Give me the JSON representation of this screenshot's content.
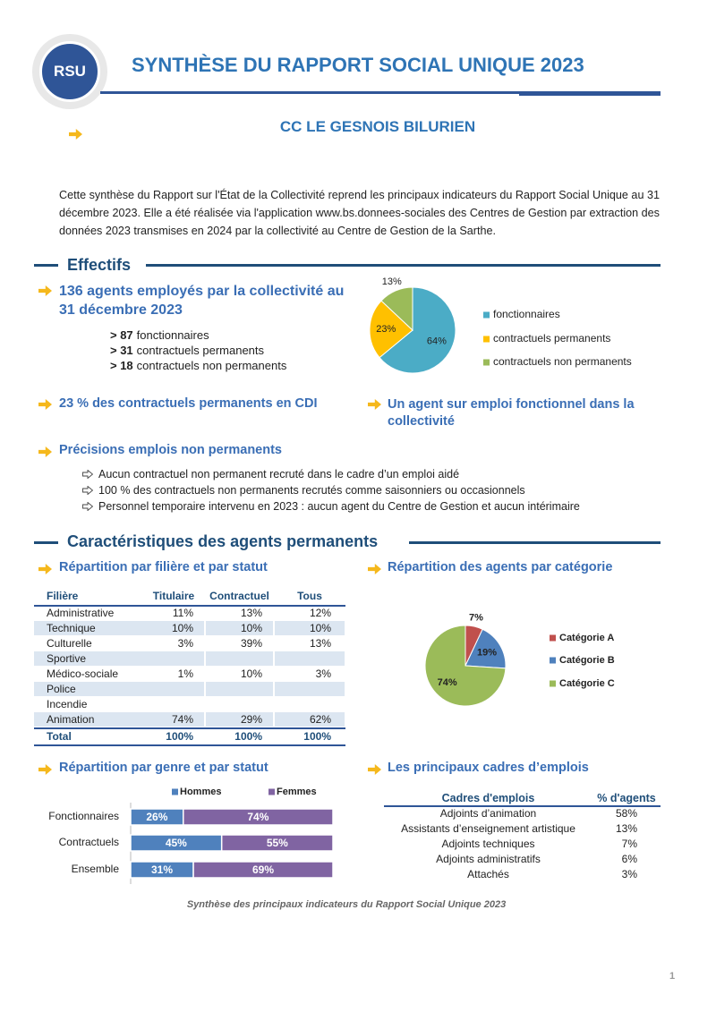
{
  "header": {
    "logo": "RSU",
    "title": "SYNTHÈSE DU RAPPORT SOCIAL UNIQUE 2023",
    "subtitle": "CC LE GESNOIS BILURIEN"
  },
  "intro": "Cette synthèse du Rapport sur l'État de la Collectivité reprend les principaux indicateurs du Rapport Social Unique au 31 décembre 2023. Elle a été réalisée via l'application www.bs.donnees-sociales des Centres de Gestion par extraction des données 2023 transmises en 2024 par la collectivité au Centre de Gestion de la Sarthe.",
  "effectifs": {
    "heading": "Effectifs",
    "headline": "136 agents employés par la collectivité au 31 décembre 2023",
    "breakdown": [
      {
        "count": "> 87",
        "label": "fonctionnaires"
      },
      {
        "count": "> 31",
        "label": "contractuels permanents"
      },
      {
        "count": "> 18",
        "label": "contractuels non permanents"
      }
    ],
    "cdi": "23 % des contractuels permanents en CDI",
    "fonctionnel": "Un agent sur emploi fonctionnel dans la collectivité",
    "non_permanents": {
      "heading": "Précisions emplois non permanents",
      "items": [
        "Aucun contractuel non permanent recruté dans le cadre d’un emploi aidé",
        "100 % des contractuels non permanents recrutés comme saisonniers ou occasionnels",
        "Personnel temporaire intervenu en 2023 : aucun agent du Centre de Gestion et aucun intérimaire"
      ]
    }
  },
  "caracteristiques": {
    "heading": "Caractéristiques des agents permanents",
    "filiere": {
      "heading": "Répartition par filière et par statut",
      "columns": [
        "Filière",
        "Titulaire",
        "Contractuel",
        "Tous"
      ],
      "rows": [
        [
          "Administrative",
          "11%",
          "13%",
          "12%"
        ],
        [
          "Technique",
          "10%",
          "10%",
          "10%"
        ],
        [
          "Culturelle",
          "3%",
          "39%",
          "13%"
        ],
        [
          "Sportive",
          null,
          null,
          null
        ],
        [
          "Médico-sociale",
          "1%",
          "10%",
          "3%"
        ],
        [
          "Police",
          null,
          null,
          null
        ],
        [
          "Incendie",
          null,
          null,
          null
        ],
        [
          "Animation",
          "74%",
          "29%",
          "62%"
        ]
      ],
      "total": [
        "Total",
        "100%",
        "100%",
        "100%"
      ]
    },
    "categorie_heading": "Répartition des agents par catégorie",
    "genre_heading": "Répartition par genre et par statut",
    "cadres": {
      "heading": "Les principaux cadres d’emplois",
      "columns": [
        "Cadres d'emplois",
        "% d'agents"
      ],
      "rows": [
        [
          "Adjoints d’animation",
          "58%"
        ],
        [
          "Assistants d’enseignement artistique",
          "13%"
        ],
        [
          "Adjoints techniques",
          "7%"
        ],
        [
          "Adjoints administratifs",
          "6%"
        ],
        [
          "Attachés",
          "3%"
        ]
      ]
    }
  },
  "footer": {
    "note": "Synthèse des principaux indicateurs du Rapport Social Unique 2023",
    "page": "1"
  },
  "chart_data": [
    {
      "type": "pie",
      "categories": [
        "fonctionnaires",
        "contractuels permanents",
        "contractuels non permanents"
      ],
      "values": [
        64,
        23,
        13
      ],
      "value_labels": [
        "64%",
        "23%",
        "13%"
      ],
      "colors": [
        "#4bacc6",
        "#ffc000",
        "#9bbb59"
      ],
      "legend": "right"
    },
    {
      "type": "pie",
      "categories": [
        "Catégorie A",
        "Catégorie B",
        "Catégorie C"
      ],
      "values": [
        7,
        19,
        74
      ],
      "value_labels": [
        "7%",
        "19%",
        "74%"
      ],
      "colors": [
        "#c0504d",
        "#4f81bd",
        "#9bbb59"
      ],
      "legend": "right"
    },
    {
      "type": "bar",
      "orientation": "horizontal",
      "stacked": true,
      "categories": [
        "Fonctionnaires",
        "Contractuels",
        "Ensemble"
      ],
      "series": [
        {
          "name": "Hommes",
          "color": "#4f81bd",
          "values": [
            26,
            45,
            31
          ],
          "value_labels": [
            "26%",
            "45%",
            "31%"
          ]
        },
        {
          "name": "Femmes",
          "color": "#8064a2",
          "values": [
            74,
            55,
            69
          ],
          "value_labels": [
            "74%",
            "55%",
            "69%"
          ]
        }
      ],
      "xlim": [
        0,
        100
      ],
      "legend": "top"
    }
  ]
}
